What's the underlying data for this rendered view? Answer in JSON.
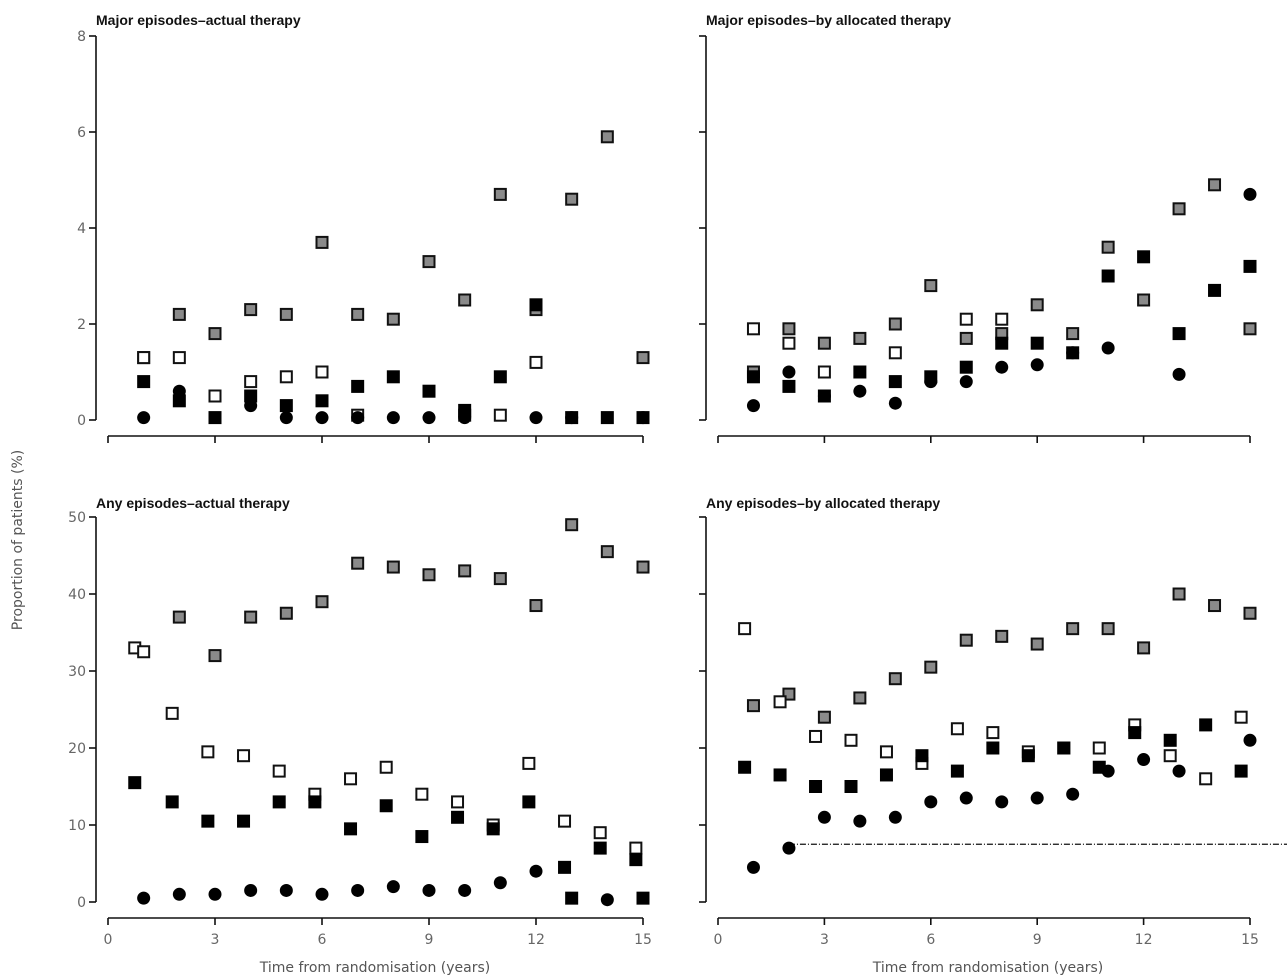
{
  "figure": {
    "ylabel": "Proportion of patients (%)",
    "xlabel": "Time from randomisation (years)"
  },
  "chart_data": [
    {
      "type": "scatter",
      "title": "Major episodes–actual therapy",
      "xlim": [
        0,
        15
      ],
      "ylim": [
        0,
        8
      ],
      "xticks": [
        "0",
        "3",
        "6",
        "9",
        "12",
        "15"
      ],
      "yticks": [
        "0",
        "2",
        "4",
        "6",
        "8"
      ],
      "series": [
        {
          "marker": "gray-square",
          "points": [
            [
              1,
              1.3
            ],
            [
              2,
              2.2
            ],
            [
              3,
              1.8
            ],
            [
              4,
              2.3
            ],
            [
              5,
              2.2
            ],
            [
              6,
              3.7
            ],
            [
              7,
              2.2
            ],
            [
              8,
              2.1
            ],
            [
              9,
              3.3
            ],
            [
              10,
              2.5
            ],
            [
              11,
              4.7
            ],
            [
              12,
              2.3
            ],
            [
              13,
              4.6
            ],
            [
              14,
              5.9
            ],
            [
              15,
              1.3
            ]
          ]
        },
        {
          "marker": "open-square",
          "points": [
            [
              1,
              1.3
            ],
            [
              2,
              1.3
            ],
            [
              3,
              0.5
            ],
            [
              4,
              0.8
            ],
            [
              5,
              0.9
            ],
            [
              6,
              1.0
            ],
            [
              7,
              0.1
            ],
            [
              10,
              0.1
            ],
            [
              11,
              0.1
            ],
            [
              12,
              1.2
            ]
          ]
        },
        {
          "marker": "black-square",
          "points": [
            [
              1,
              0.8
            ],
            [
              2,
              0.4
            ],
            [
              3,
              0.05
            ],
            [
              4,
              0.5
            ],
            [
              5,
              0.3
            ],
            [
              6,
              0.4
            ],
            [
              7,
              0.7
            ],
            [
              8,
              0.9
            ],
            [
              9,
              0.6
            ],
            [
              10,
              0.2
            ],
            [
              11,
              0.9
            ],
            [
              12,
              2.4
            ],
            [
              13,
              0.05
            ],
            [
              14,
              0.05
            ],
            [
              15,
              0.05
            ]
          ]
        },
        {
          "marker": "black-circle",
          "points": [
            [
              1,
              0.05
            ],
            [
              2,
              0.6
            ],
            [
              4,
              0.3
            ],
            [
              5,
              0.05
            ],
            [
              6,
              0.05
            ],
            [
              7,
              0.05
            ],
            [
              8,
              0.05
            ],
            [
              9,
              0.05
            ],
            [
              10,
              0.05
            ],
            [
              12,
              0.05
            ],
            [
              13,
              0.05
            ],
            [
              15,
              0.05
            ]
          ]
        }
      ]
    },
    {
      "type": "scatter",
      "title": "Major episodes–by allocated therapy",
      "xlim": [
        0,
        15
      ],
      "ylim": [
        0,
        8
      ],
      "xticks": [
        "0",
        "3",
        "6",
        "9",
        "12",
        "15"
      ],
      "yticks": [],
      "series": [
        {
          "marker": "gray-square",
          "points": [
            [
              1,
              1.0
            ],
            [
              2,
              1.9
            ],
            [
              3,
              1.6
            ],
            [
              4,
              1.7
            ],
            [
              5,
              2.0
            ],
            [
              6,
              2.8
            ],
            [
              7,
              1.7
            ],
            [
              8,
              1.8
            ],
            [
              9,
              2.4
            ],
            [
              10,
              1.8
            ],
            [
              11,
              3.6
            ],
            [
              12,
              2.5
            ],
            [
              13,
              4.4
            ],
            [
              14,
              4.9
            ],
            [
              15,
              1.9
            ]
          ]
        },
        {
          "marker": "open-square",
          "points": [
            [
              1,
              1.9
            ],
            [
              2,
              1.6
            ],
            [
              3,
              1.0
            ],
            [
              5,
              1.4
            ],
            [
              7,
              2.1
            ],
            [
              8,
              2.1
            ]
          ]
        },
        {
          "marker": "black-square",
          "points": [
            [
              1,
              0.9
            ],
            [
              2,
              0.7
            ],
            [
              3,
              0.5
            ],
            [
              4,
              1.0
            ],
            [
              5,
              0.8
            ],
            [
              6,
              0.9
            ],
            [
              7,
              1.1
            ],
            [
              8,
              1.6
            ],
            [
              9,
              1.6
            ],
            [
              10,
              1.4
            ],
            [
              11,
              3.0
            ],
            [
              12,
              3.4
            ],
            [
              13,
              1.8
            ],
            [
              14,
              2.7
            ],
            [
              15,
              3.2
            ]
          ]
        },
        {
          "marker": "black-circle",
          "points": [
            [
              1,
              0.3
            ],
            [
              2,
              1.0
            ],
            [
              3,
              0.5
            ],
            [
              4,
              0.6
            ],
            [
              5,
              0.35
            ],
            [
              6,
              0.8
            ],
            [
              7,
              0.8
            ],
            [
              8,
              1.1
            ],
            [
              9,
              1.15
            ],
            [
              10,
              1.4
            ],
            [
              11,
              1.5
            ],
            [
              13,
              0.95
            ],
            [
              15,
              4.7
            ]
          ]
        }
      ]
    },
    {
      "type": "scatter",
      "title": "Any episodes–actual therapy",
      "xlim": [
        0,
        15
      ],
      "ylim": [
        0,
        50
      ],
      "xticks": [
        "0",
        "3",
        "6",
        "9",
        "12",
        "15"
      ],
      "yticks": [
        "0",
        "10",
        "20",
        "30",
        "40",
        "50"
      ],
      "series": [
        {
          "marker": "gray-square",
          "points": [
            [
              2,
              37
            ],
            [
              3,
              32
            ],
            [
              4,
              37
            ],
            [
              5,
              37.5
            ],
            [
              6,
              39
            ],
            [
              7,
              44
            ],
            [
              8,
              43.5
            ],
            [
              9,
              42.5
            ],
            [
              10,
              43
            ],
            [
              11,
              42
            ],
            [
              12,
              38.5
            ],
            [
              13,
              49
            ],
            [
              14,
              45.5
            ],
            [
              15,
              43.5
            ]
          ]
        },
        {
          "marker": "open-square",
          "points": [
            [
              0.75,
              33
            ],
            [
              1,
              32.5
            ],
            [
              1.8,
              24.5
            ],
            [
              2.8,
              19.5
            ],
            [
              3.8,
              19
            ],
            [
              4.8,
              17
            ],
            [
              5.8,
              14
            ],
            [
              6.8,
              16
            ],
            [
              7.8,
              17.5
            ],
            [
              8.8,
              14
            ],
            [
              9.8,
              13
            ],
            [
              10.8,
              10
            ],
            [
              11.8,
              18
            ],
            [
              12.8,
              10.5
            ],
            [
              13.8,
              9
            ],
            [
              14.8,
              7
            ]
          ]
        },
        {
          "marker": "black-square",
          "points": [
            [
              0.75,
              15.5
            ],
            [
              1.8,
              13
            ],
            [
              2.8,
              10.5
            ],
            [
              3.8,
              10.5
            ],
            [
              4.8,
              13
            ],
            [
              5.8,
              13
            ],
            [
              6.8,
              9.5
            ],
            [
              7.8,
              12.5
            ],
            [
              8.8,
              8.5
            ],
            [
              9.8,
              11
            ],
            [
              10.8,
              9.5
            ],
            [
              11.8,
              13
            ],
            [
              12.8,
              4.5
            ],
            [
              13.8,
              7
            ],
            [
              14.8,
              5.5
            ],
            [
              13,
              0.5
            ],
            [
              15,
              0.5
            ]
          ]
        },
        {
          "marker": "black-circle",
          "points": [
            [
              1,
              0.5
            ],
            [
              2,
              1
            ],
            [
              3,
              1
            ],
            [
              4,
              1.5
            ],
            [
              5,
              1.5
            ],
            [
              6,
              1
            ],
            [
              7,
              1.5
            ],
            [
              8,
              2
            ],
            [
              9,
              1.5
            ],
            [
              10,
              1.5
            ],
            [
              11,
              2.5
            ],
            [
              12,
              4
            ],
            [
              14,
              0.3
            ]
          ]
        }
      ]
    },
    {
      "type": "scatter",
      "title": "Any episodes–by allocated therapy",
      "xlim": [
        0,
        15
      ],
      "ylim": [
        0,
        50
      ],
      "xticks": [
        "0",
        "3",
        "6",
        "9",
        "12",
        "15"
      ],
      "yticks": [],
      "reference_line": {
        "y": 7.5,
        "from_x": 2,
        "style": "dashed"
      },
      "series": [
        {
          "marker": "gray-square",
          "points": [
            [
              1,
              25.5
            ],
            [
              2,
              27
            ],
            [
              3,
              24
            ],
            [
              4,
              26.5
            ],
            [
              5,
              29
            ],
            [
              6,
              30.5
            ],
            [
              7,
              34
            ],
            [
              8,
              34.5
            ],
            [
              9,
              33.5
            ],
            [
              10,
              35.5
            ],
            [
              11,
              35.5
            ],
            [
              12,
              33
            ],
            [
              13,
              40
            ],
            [
              14,
              38.5
            ],
            [
              15,
              37.5
            ]
          ]
        },
        {
          "marker": "open-square",
          "points": [
            [
              0.75,
              35.5
            ],
            [
              1.75,
              26
            ],
            [
              2.75,
              21.5
            ],
            [
              3.75,
              21
            ],
            [
              4.75,
              19.5
            ],
            [
              5.75,
              18
            ],
            [
              6.75,
              22.5
            ],
            [
              7.75,
              22
            ],
            [
              8.75,
              19.5
            ],
            [
              9.75,
              20
            ],
            [
              10.75,
              20
            ],
            [
              11.75,
              23
            ],
            [
              12.75,
              19
            ],
            [
              13.75,
              16
            ],
            [
              14.75,
              24
            ]
          ]
        },
        {
          "marker": "black-square",
          "points": [
            [
              0.75,
              17.5
            ],
            [
              1.75,
              16.5
            ],
            [
              2.75,
              15
            ],
            [
              3.75,
              15
            ],
            [
              4.75,
              16.5
            ],
            [
              5.75,
              19
            ],
            [
              6.75,
              17
            ],
            [
              7.75,
              20
            ],
            [
              8.75,
              19
            ],
            [
              9.75,
              20
            ],
            [
              10.75,
              17.5
            ],
            [
              11.75,
              22
            ],
            [
              12.75,
              21
            ],
            [
              13.75,
              23
            ],
            [
              14.75,
              17
            ]
          ]
        },
        {
          "marker": "black-circle",
          "points": [
            [
              1,
              4.5
            ],
            [
              2,
              7
            ],
            [
              3,
              11
            ],
            [
              4,
              10.5
            ],
            [
              5,
              11
            ],
            [
              6,
              13
            ],
            [
              7,
              13.5
            ],
            [
              8,
              13
            ],
            [
              9,
              13.5
            ],
            [
              10,
              14
            ],
            [
              11,
              17
            ],
            [
              12,
              18.5
            ],
            [
              13,
              17
            ],
            [
              15,
              21
            ]
          ]
        }
      ]
    }
  ]
}
